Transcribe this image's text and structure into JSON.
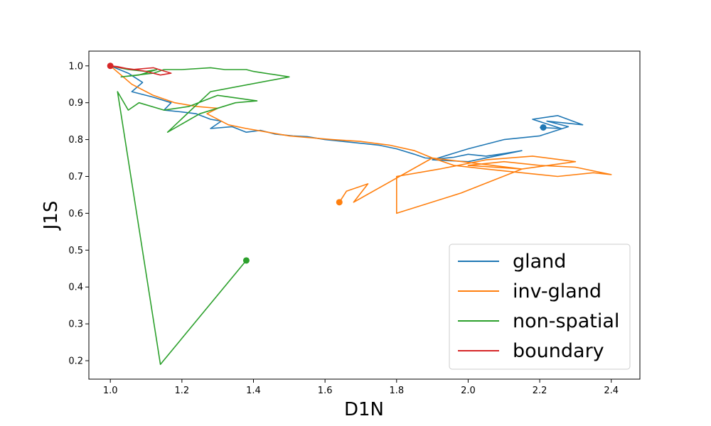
{
  "chart_data": {
    "type": "line",
    "title": "",
    "xlabel": "D1N",
    "ylabel": "J1S",
    "xlim": [
      0.94,
      2.48
    ],
    "ylim": [
      0.15,
      1.04
    ],
    "xticks": [
      1.0,
      1.2,
      1.4,
      1.6,
      1.8,
      2.0,
      2.2,
      2.4
    ],
    "xtick_labels": [
      "1.0",
      "1.2",
      "1.4",
      "1.6",
      "1.8",
      "2.0",
      "2.2",
      "2.4"
    ],
    "yticks": [
      0.2,
      0.3,
      0.4,
      0.5,
      0.6,
      0.7,
      0.8,
      0.9,
      1.0
    ],
    "ytick_labels": [
      "0.2",
      "0.3",
      "0.4",
      "0.5",
      "0.6",
      "0.7",
      "0.8",
      "0.9",
      "1.0"
    ],
    "grid": false,
    "legend_position": "lower-right",
    "series": [
      {
        "name": "gland",
        "color": "#1f77b4",
        "end_marker": [
          2.21,
          0.833
        ],
        "x": [
          1.0,
          1.05,
          1.09,
          1.06,
          1.12,
          1.17,
          1.15,
          1.2,
          1.24,
          1.28,
          1.31,
          1.28,
          1.34,
          1.38,
          1.42,
          1.46,
          1.51,
          1.55,
          1.6,
          1.65,
          1.7,
          1.75,
          1.8,
          1.85,
          1.88,
          1.92,
          1.96,
          2.0,
          2.05,
          2.1,
          2.15,
          2.0,
          1.9,
          2.0,
          2.1,
          2.2,
          2.28,
          2.22,
          2.32,
          2.25,
          2.18,
          2.26,
          2.2
        ],
        "y": [
          1.0,
          0.98,
          0.955,
          0.93,
          0.915,
          0.9,
          0.88,
          0.875,
          0.87,
          0.855,
          0.85,
          0.83,
          0.835,
          0.82,
          0.825,
          0.815,
          0.81,
          0.808,
          0.8,
          0.795,
          0.79,
          0.785,
          0.775,
          0.76,
          0.75,
          0.748,
          0.752,
          0.76,
          0.755,
          0.762,
          0.77,
          0.74,
          0.745,
          0.775,
          0.8,
          0.81,
          0.835,
          0.85,
          0.84,
          0.865,
          0.855,
          0.83,
          0.833
        ]
      },
      {
        "name": "inv-gland",
        "color": "#ff7f0e",
        "end_marker": [
          1.64,
          0.63
        ],
        "x": [
          1.0,
          1.06,
          1.12,
          1.18,
          1.24,
          1.3,
          1.27,
          1.33,
          1.38,
          1.44,
          1.5,
          1.56,
          1.62,
          1.7,
          1.78,
          1.85,
          1.9,
          1.96,
          2.05,
          2.15,
          2.25,
          2.35,
          2.4,
          2.3,
          2.2,
          2.1,
          2.0,
          2.15,
          2.3,
          2.18,
          2.05,
          1.92,
          1.8,
          1.8,
          1.98,
          2.15,
          1.9,
          1.68,
          1.72,
          1.66,
          1.64
        ],
        "y": [
          1.0,
          0.95,
          0.92,
          0.9,
          0.89,
          0.885,
          0.87,
          0.84,
          0.83,
          0.82,
          0.81,
          0.805,
          0.8,
          0.795,
          0.785,
          0.77,
          0.75,
          0.73,
          0.72,
          0.71,
          0.7,
          0.71,
          0.705,
          0.725,
          0.73,
          0.74,
          0.73,
          0.72,
          0.74,
          0.755,
          0.745,
          0.72,
          0.7,
          0.6,
          0.655,
          0.72,
          0.75,
          0.63,
          0.68,
          0.66,
          0.63
        ]
      },
      {
        "name": "non-spatial",
        "color": "#2ca02c",
        "end_marker": [
          1.38,
          0.472
        ],
        "x": [
          1.0,
          1.05,
          1.1,
          1.13,
          1.08,
          1.03,
          1.12,
          1.15,
          1.2,
          1.28,
          1.32,
          1.38,
          1.4,
          1.5,
          1.28,
          1.16,
          1.25,
          1.35,
          1.41,
          1.3,
          1.22,
          1.15,
          1.08,
          1.05,
          1.02,
          1.14,
          1.38
        ],
        "y": [
          1.0,
          0.99,
          0.985,
          0.99,
          0.975,
          0.97,
          0.98,
          0.99,
          0.99,
          0.995,
          0.99,
          0.99,
          0.985,
          0.97,
          0.93,
          0.82,
          0.87,
          0.9,
          0.905,
          0.92,
          0.89,
          0.88,
          0.9,
          0.88,
          0.93,
          0.19,
          0.472
        ]
      },
      {
        "name": "boundary",
        "color": "#d62728",
        "end_marker": [
          1.0,
          1.0
        ],
        "x": [
          1.0,
          1.03,
          1.07,
          1.1,
          1.14,
          1.17,
          1.12,
          1.06,
          1.02,
          1.0
        ],
        "y": [
          1.0,
          0.995,
          0.99,
          0.985,
          0.975,
          0.98,
          0.995,
          0.99,
          0.998,
          1.0
        ]
      }
    ]
  }
}
